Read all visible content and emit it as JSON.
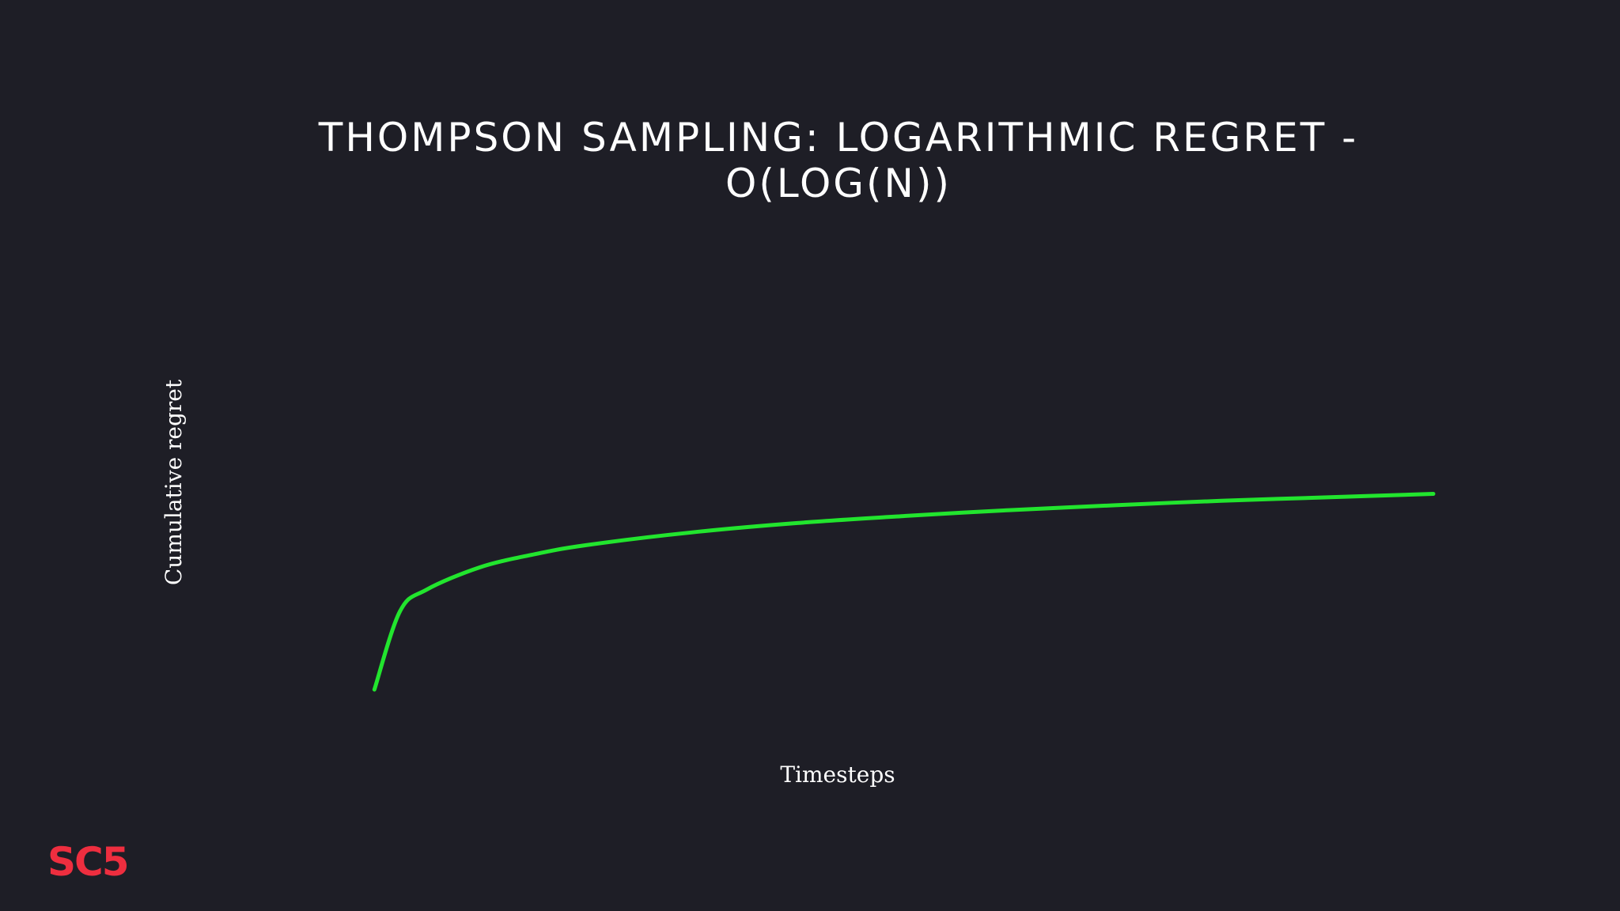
{
  "slide": {
    "logo_text": "SC5"
  },
  "chart_data": {
    "type": "line",
    "title": "THOMPSON SAMPLING: LOGARITHMIC REGRET - O(LOG(N))",
    "xlabel": "Timesteps",
    "ylabel": "Cumulative regret",
    "xlim": [
      0,
      1000
    ],
    "ylim": [
      0,
      8
    ],
    "grid": false,
    "legend": "none",
    "series": [
      {
        "color": "#22e52e",
        "x": [
          1,
          25,
          50,
          100,
          150,
          200,
          300,
          400,
          500,
          600,
          700,
          800,
          900,
          1000
        ],
        "y": [
          0.0,
          1.58,
          2.02,
          2.47,
          2.73,
          2.92,
          3.18,
          3.37,
          3.51,
          3.63,
          3.73,
          3.82,
          3.89,
          3.96
        ]
      }
    ]
  }
}
